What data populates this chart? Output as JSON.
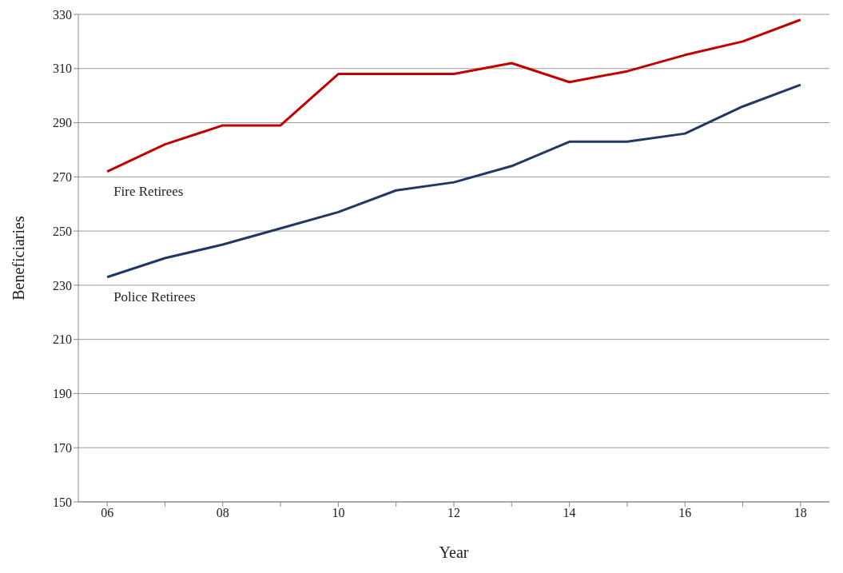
{
  "chart_data": {
    "type": "line",
    "xlabel": "Year",
    "ylabel": "Beneficiaries",
    "x": [
      6,
      7,
      8,
      9,
      10,
      11,
      12,
      13,
      14,
      15,
      16,
      17,
      18
    ],
    "series": [
      {
        "name": "Fire Retirees",
        "color": "#c00000",
        "values": [
          272,
          282,
          289,
          289,
          308,
          308,
          308,
          312,
          305,
          309,
          315,
          320,
          328
        ]
      },
      {
        "name": "Police Retirees",
        "color": "#1f3864",
        "values": [
          233,
          240,
          245,
          251,
          257,
          265,
          268,
          274,
          283,
          283,
          286,
          296,
          304
        ]
      }
    ],
    "xlim": [
      5.5,
      18.5
    ],
    "xticks": [
      {
        "value": 6,
        "label": "06"
      },
      {
        "value": 7,
        "label": null
      },
      {
        "value": 8,
        "label": "08"
      },
      {
        "value": 9,
        "label": null
      },
      {
        "value": 10,
        "label": "10"
      },
      {
        "value": 11,
        "label": null
      },
      {
        "value": 12,
        "label": "12"
      },
      {
        "value": 13,
        "label": null
      },
      {
        "value": 14,
        "label": "14"
      },
      {
        "value": 15,
        "label": null
      },
      {
        "value": 16,
        "label": "16"
      },
      {
        "value": 17,
        "label": null
      },
      {
        "value": 18,
        "label": "18"
      }
    ],
    "ylim": [
      150,
      330
    ],
    "yticks": [
      150,
      170,
      190,
      210,
      230,
      250,
      270,
      290,
      310,
      330
    ],
    "grid": "y",
    "legend": false,
    "marker": "none",
    "line_style": "solid"
  }
}
